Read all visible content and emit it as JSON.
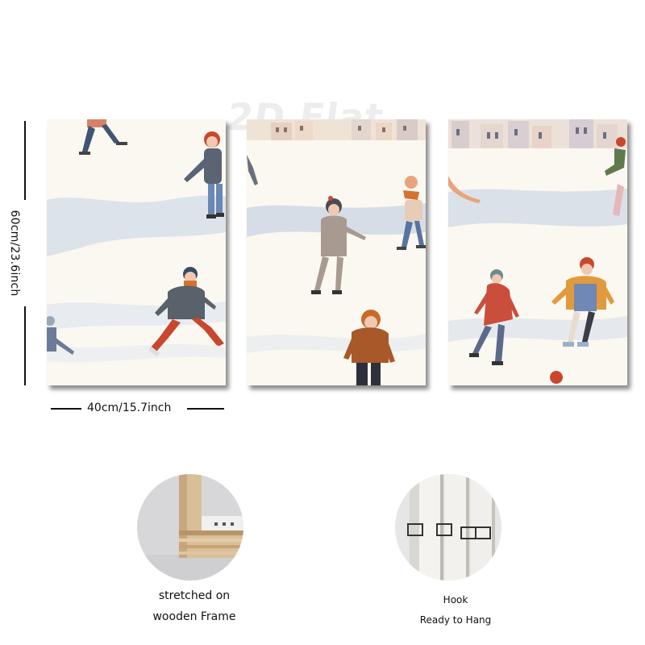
{
  "dimensions": {
    "height_label": "60cm/23.6inch",
    "width_label": "40cm/15.7inch"
  },
  "watermark": "2D Flat",
  "panels": [
    {
      "name": "left-panel",
      "scene": "ice-skaters-village"
    },
    {
      "name": "middle-panel",
      "scene": "ice-skaters-village"
    },
    {
      "name": "right-panel",
      "scene": "ice-skaters-village"
    }
  ],
  "details": {
    "frame": {
      "line1": "stretched on",
      "line2": "wooden Frame"
    },
    "hook": {
      "line1": "Hook",
      "line2": "Ready to Hang"
    }
  },
  "colors": {
    "canvas": "#fbf8f1",
    "ice": "#c9d3e0",
    "wood": "#d9bf99"
  }
}
